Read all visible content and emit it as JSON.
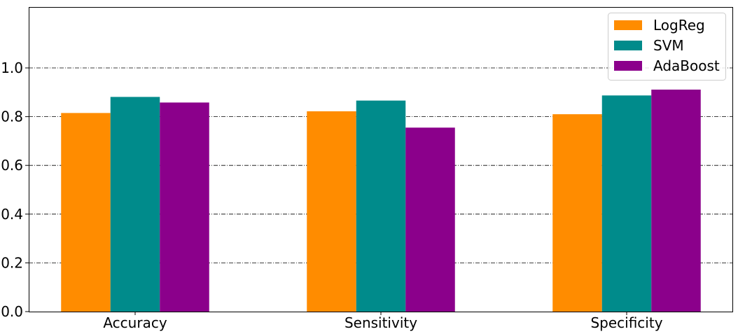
{
  "chart_data": {
    "type": "bar",
    "title": "",
    "xlabel": "",
    "ylabel": "",
    "categories": [
      "Accuracy",
      "Sensitivity",
      "Specificity"
    ],
    "series": [
      {
        "name": "LogReg",
        "color": "#ff8c00",
        "values": [
          0.815,
          0.822,
          0.81
        ]
      },
      {
        "name": "SVM",
        "color": "#008b8b",
        "values": [
          0.881,
          0.866,
          0.887
        ]
      },
      {
        "name": "AdaBoost",
        "color": "#8b008b",
        "values": [
          0.858,
          0.755,
          0.911
        ]
      }
    ],
    "ylim": [
      0,
      1.25
    ],
    "yticks": [
      0.0,
      0.2,
      0.4,
      0.6,
      0.8,
      1.0
    ],
    "ytick_labels": [
      "0.0",
      "0.2",
      "0.4",
      "0.6",
      "0.8",
      "1.0"
    ],
    "grid": "horizontal dash-dot",
    "legend_position": "top-right"
  }
}
